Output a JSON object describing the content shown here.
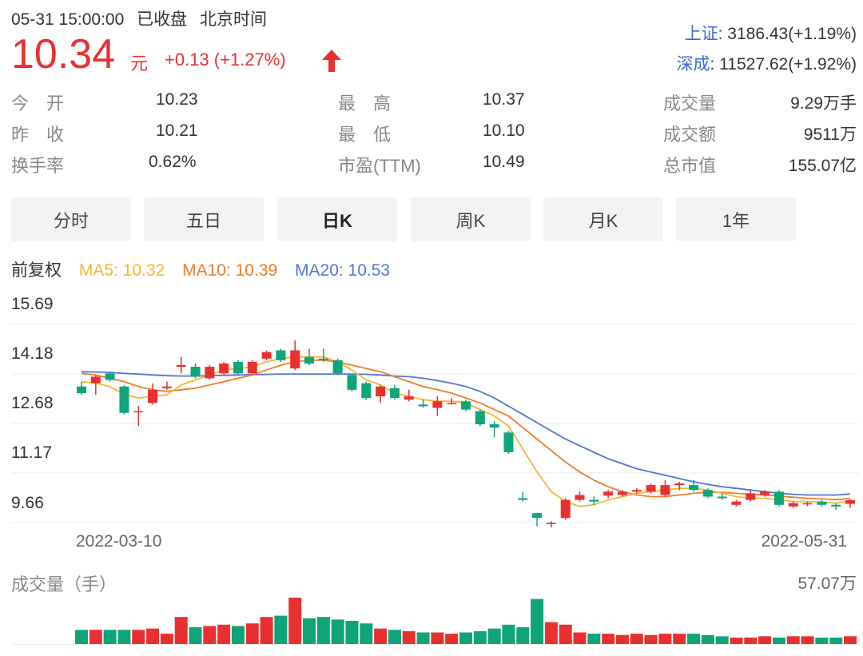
{
  "header": {
    "datetime": "05-31 15:00:00",
    "state": "已收盘",
    "timezone": "北京时间",
    "price": "10.34",
    "unit": "元",
    "change": "+0.13 (+1.27%)",
    "arrow": "up-arrow-icon"
  },
  "indexes": [
    {
      "name": "上证",
      "value": ": 3186.43(+1.19%)"
    },
    {
      "name": "深成",
      "value": ": 11527.62(+1.92%)"
    }
  ],
  "stats": {
    "open_label": "今　开",
    "open": "10.23",
    "prev_label": "昨　收",
    "prev": "10.21",
    "turnover_label": "换手率",
    "turnover": "0.62%",
    "high_label": "最　高",
    "high": "10.37",
    "low_label": "最　低",
    "low": "10.10",
    "pe_label": "市盈(TTM)",
    "pe": "10.49",
    "volume_label": "成交量",
    "volume": "9.29万手",
    "amount_label": "成交额",
    "amount": "9511万",
    "mktcap_label": "总市值",
    "mktcap": "155.07亿"
  },
  "tabs": [
    "分时",
    "五日",
    "日K",
    "周K",
    "月K",
    "1年"
  ],
  "active_tab": "日K",
  "ma": {
    "adjust": "前复权",
    "ma5": "MA5: 10.32",
    "ma10": "MA10: 10.39",
    "ma20": "MA20: 10.53"
  },
  "colors": {
    "up": "#e93030",
    "down": "#0fa47a",
    "ma5": "#f5b731",
    "ma10": "#f07c2a",
    "ma20": "#5275d8"
  },
  "chart_data": {
    "type": "candlestick",
    "y_ticks": [
      "15.69",
      "14.18",
      "12.68",
      "11.17",
      "9.66"
    ],
    "ylim": [
      9.06,
      15.69
    ],
    "x_start_label": "2022-03-10",
    "x_end_label": "2022-05-31",
    "candles": [
      [
        13.8,
        13.6,
        13.95,
        13.55
      ],
      [
        13.9,
        14.1,
        14.15,
        13.55
      ],
      [
        14.2,
        14.0,
        14.25,
        13.95
      ],
      [
        13.8,
        13.0,
        13.85,
        12.95
      ],
      [
        13.02,
        13.05,
        13.2,
        12.6
      ],
      [
        13.3,
        13.7,
        13.9,
        13.25
      ],
      [
        13.75,
        13.8,
        13.95,
        13.7
      ],
      [
        14.4,
        14.45,
        14.7,
        14.2
      ],
      [
        14.4,
        14.1,
        14.5,
        14.05
      ],
      [
        14.05,
        14.4,
        14.45,
        14.0
      ],
      [
        14.2,
        14.5,
        14.55,
        14.15
      ],
      [
        14.55,
        14.2,
        14.6,
        14.15
      ],
      [
        14.2,
        14.55,
        14.6,
        14.15
      ],
      [
        14.65,
        14.85,
        14.9,
        14.6
      ],
      [
        14.9,
        14.6,
        14.95,
        14.55
      ],
      [
        14.35,
        14.9,
        15.2,
        14.3
      ],
      [
        14.7,
        14.5,
        14.95,
        14.45
      ],
      [
        14.65,
        14.6,
        14.95,
        14.55
      ],
      [
        14.6,
        14.2,
        14.65,
        14.15
      ],
      [
        14.15,
        13.7,
        14.2,
        13.65
      ],
      [
        13.9,
        13.45,
        13.95,
        13.4
      ],
      [
        13.5,
        13.8,
        13.85,
        13.3
      ],
      [
        13.75,
        13.45,
        13.85,
        13.4
      ],
      [
        13.4,
        13.5,
        13.7,
        13.35
      ],
      [
        13.25,
        13.2,
        13.4,
        13.15
      ],
      [
        13.15,
        13.35,
        13.5,
        12.9
      ],
      [
        13.3,
        13.3,
        13.45,
        13.25
      ],
      [
        13.35,
        13.1,
        13.4,
        13.05
      ],
      [
        13.05,
        12.65,
        13.1,
        12.6
      ],
      [
        12.65,
        12.55,
        12.75,
        12.25
      ],
      [
        12.4,
        11.8,
        12.45,
        11.75
      ],
      [
        10.4,
        10.35,
        10.6,
        10.3
      ],
      [
        9.95,
        9.8,
        9.95,
        9.55
      ],
      [
        9.65,
        9.65,
        9.7,
        9.35
      ],
      [
        9.8,
        10.35,
        10.4,
        9.75
      ],
      [
        10.35,
        10.5,
        10.6,
        10.3
      ],
      [
        10.35,
        10.3,
        10.45,
        10.2
      ],
      [
        10.48,
        10.6,
        10.65,
        10.4
      ],
      [
        10.5,
        10.6,
        10.65,
        10.45
      ],
      [
        10.6,
        10.65,
        10.7,
        10.55
      ],
      [
        10.6,
        10.8,
        10.85,
        10.55
      ],
      [
        10.5,
        10.8,
        10.95,
        10.45
      ],
      [
        10.8,
        10.85,
        10.9,
        10.65
      ],
      [
        10.8,
        10.65,
        10.95,
        10.6
      ],
      [
        10.65,
        10.45,
        10.7,
        10.4
      ],
      [
        10.45,
        10.4,
        10.55,
        10.35
      ],
      [
        10.2,
        10.3,
        10.35,
        10.15
      ],
      [
        10.35,
        10.55,
        10.65,
        10.3
      ],
      [
        10.5,
        10.6,
        10.65,
        10.45
      ],
      [
        10.6,
        10.2,
        10.65,
        10.15
      ],
      [
        10.15,
        10.25,
        10.3,
        10.1
      ],
      [
        10.25,
        10.25,
        10.3,
        10.15
      ],
      [
        10.3,
        10.2,
        10.35,
        10.15
      ],
      [
        10.2,
        10.15,
        10.25,
        10.05
      ],
      [
        10.23,
        10.34,
        10.37,
        10.1
      ]
    ],
    "ma5": [
      13.95,
      13.9,
      13.8,
      13.55,
      13.45,
      13.5,
      13.55,
      13.85,
      14.0,
      14.15,
      14.3,
      14.35,
      14.4,
      14.55,
      14.65,
      14.7,
      14.7,
      14.7,
      14.55,
      14.3,
      14.0,
      13.85,
      13.6,
      13.5,
      13.4,
      13.35,
      13.35,
      13.3,
      13.1,
      12.9,
      12.6,
      11.9,
      11.2,
      10.6,
      10.3,
      10.15,
      10.2,
      10.35,
      10.45,
      10.55,
      10.6,
      10.65,
      10.7,
      10.7,
      10.65,
      10.55,
      10.45,
      10.4,
      10.4,
      10.35,
      10.3,
      10.3,
      10.28,
      10.25,
      10.32
    ],
    "ma20": [
      14.25,
      14.24,
      14.23,
      14.2,
      14.18,
      14.15,
      14.13,
      14.12,
      14.12,
      14.13,
      14.14,
      14.15,
      14.16,
      14.17,
      14.18,
      14.18,
      14.18,
      14.18,
      14.18,
      14.18,
      14.17,
      14.15,
      14.12,
      14.1,
      14.05,
      13.98,
      13.9,
      13.8,
      13.65,
      13.45,
      13.2,
      12.95,
      12.7,
      12.45,
      12.2,
      12.0,
      11.8,
      11.6,
      11.45,
      11.3,
      11.2,
      11.1,
      11.0,
      10.9,
      10.82,
      10.75,
      10.7,
      10.65,
      10.6,
      10.55,
      10.52,
      10.5,
      10.5,
      10.5,
      10.53
    ],
    "ma10": [
      14.2,
      14.15,
      14.05,
      13.95,
      13.8,
      13.7,
      13.65,
      13.7,
      13.75,
      13.85,
      13.95,
      14.05,
      14.15,
      14.3,
      14.45,
      14.55,
      14.6,
      14.6,
      14.55,
      14.45,
      14.35,
      14.25,
      14.1,
      13.95,
      13.8,
      13.7,
      13.6,
      13.45,
      13.3,
      13.1,
      12.9,
      12.55,
      12.2,
      11.85,
      11.5,
      11.2,
      10.95,
      10.75,
      10.6,
      10.5,
      10.45,
      10.45,
      10.5,
      10.55,
      10.58,
      10.58,
      10.55,
      10.52,
      10.5,
      10.47,
      10.43,
      10.4,
      10.38,
      10.36,
      10.39
    ],
    "volume_title": "成交量（手）",
    "volume_max_label": "57.07万",
    "volume": [
      0.22,
      0.22,
      0.22,
      0.22,
      0.22,
      0.24,
      0.16,
      0.42,
      0.26,
      0.28,
      0.3,
      0.28,
      0.32,
      0.42,
      0.44,
      0.72,
      0.4,
      0.42,
      0.38,
      0.36,
      0.32,
      0.24,
      0.22,
      0.2,
      0.18,
      0.18,
      0.16,
      0.18,
      0.2,
      0.24,
      0.3,
      0.26,
      0.7,
      0.34,
      0.3,
      0.18,
      0.16,
      0.16,
      0.14,
      0.16,
      0.14,
      0.16,
      0.16,
      0.16,
      0.14,
      0.12,
      0.1,
      0.1,
      0.12,
      0.1,
      0.12,
      0.12,
      0.1,
      0.1,
      0.12
    ]
  }
}
